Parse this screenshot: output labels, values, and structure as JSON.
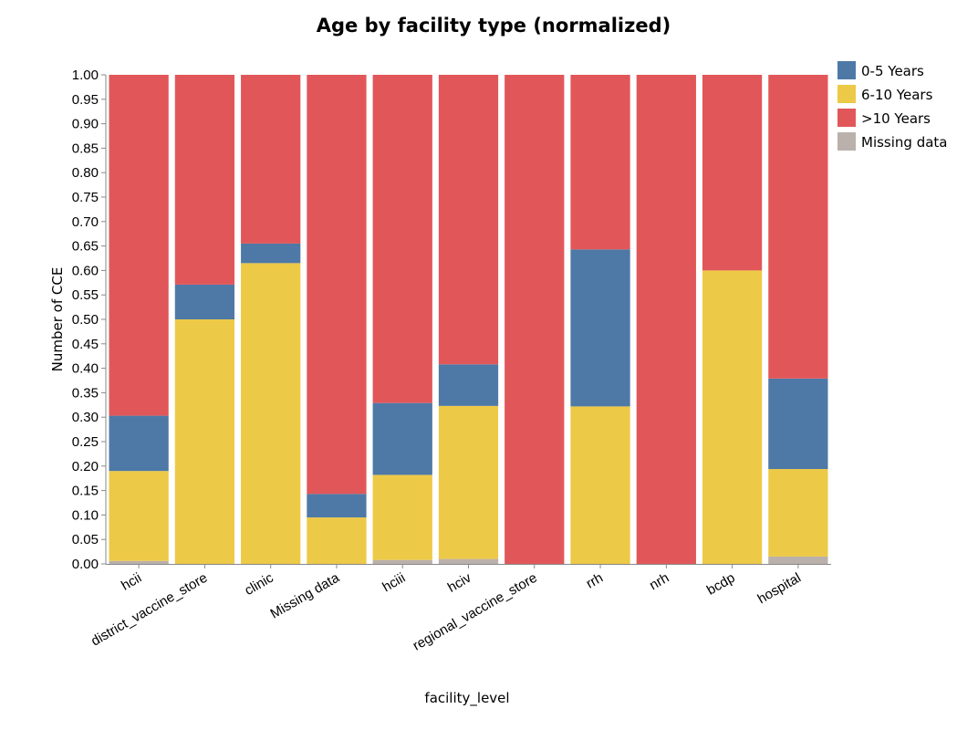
{
  "chart_data": {
    "type": "bar",
    "stacked": true,
    "normalized": true,
    "title": "Age by facility type (normalized)",
    "xlabel": "facility_level",
    "ylabel": "Number of CCE",
    "ylim": [
      0,
      1
    ],
    "yticks": [
      "0.00",
      "0.05",
      "0.10",
      "0.15",
      "0.20",
      "0.25",
      "0.30",
      "0.35",
      "0.40",
      "0.45",
      "0.50",
      "0.55",
      "0.60",
      "0.65",
      "0.70",
      "0.75",
      "0.80",
      "0.85",
      "0.90",
      "0.95",
      "1.00"
    ],
    "grid": false,
    "legend_position": "top-right",
    "categories": [
      "hcii",
      "district_vaccine_store",
      "clinic",
      "Missing data",
      "hciii",
      "hciv",
      "regional_vaccine_store",
      "rrh",
      "nrh",
      "bcdp",
      "hospital"
    ],
    "series": [
      {
        "name": "Missing data",
        "color": "#bab0ac",
        "values": [
          0.006,
          0.0,
          0.0,
          0.0,
          0.008,
          0.01,
          0.0,
          0.0,
          0.0,
          0.0,
          0.015
        ]
      },
      {
        "name": "6-10 Years",
        "color": "#edc948",
        "values": [
          0.184,
          0.5,
          0.615,
          0.095,
          0.174,
          0.313,
          0.0,
          0.322,
          0.0,
          0.6,
          0.179
        ]
      },
      {
        "name": "0-5 Years",
        "color": "#4e79a7",
        "values": [
          0.113,
          0.071,
          0.04,
          0.048,
          0.147,
          0.085,
          0.0,
          0.321,
          0.0,
          0.0,
          0.185
        ]
      },
      {
        "name": ">10 Years",
        "color": "#e15759",
        "values": [
          0.697,
          0.429,
          0.345,
          0.857,
          0.671,
          0.592,
          1.0,
          0.357,
          1.0,
          0.4,
          0.621
        ]
      }
    ],
    "legend_order": [
      "0-5 Years",
      "6-10 Years",
      ">10 Years",
      "Missing data"
    ]
  }
}
